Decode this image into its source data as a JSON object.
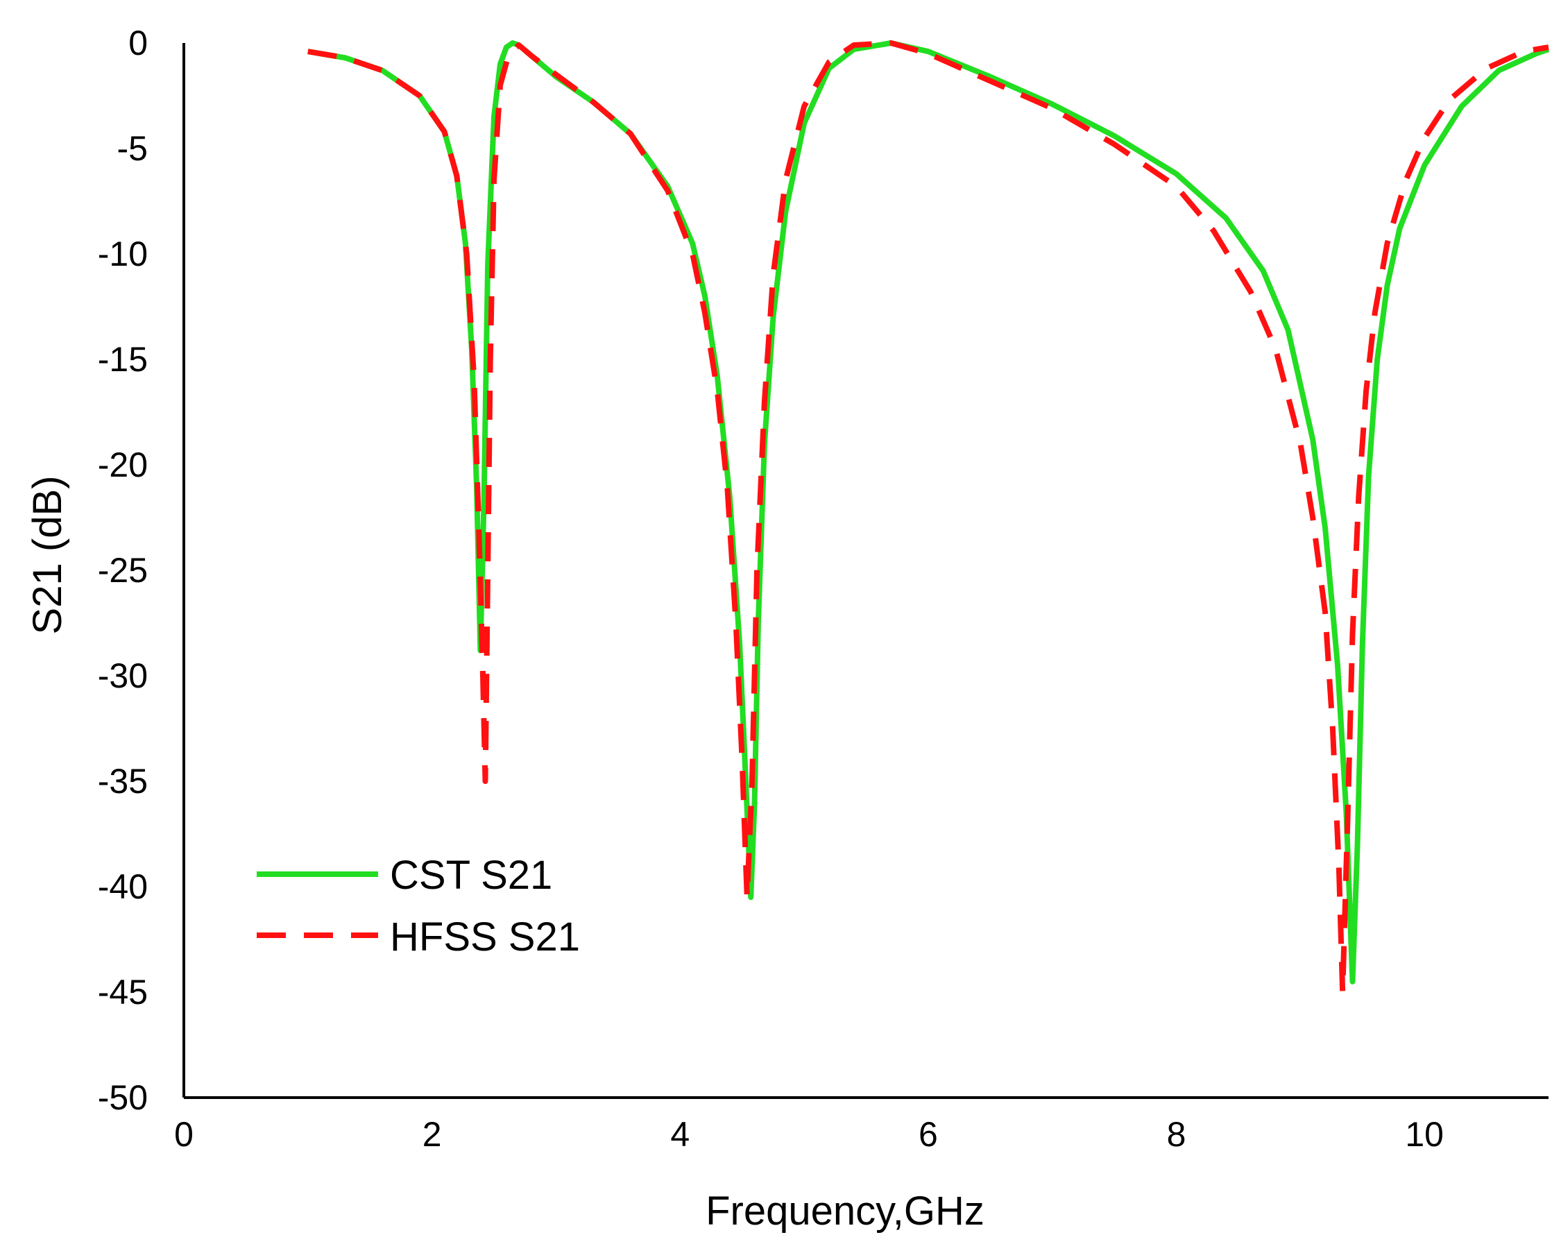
{
  "chart_data": {
    "type": "line",
    "title": "",
    "xlabel": "Frequency,GHz",
    "ylabel": "S21 (dB)",
    "xlim": [
      0,
      11
    ],
    "ylim": [
      -50,
      0
    ],
    "xticks": [
      0,
      2,
      4,
      6,
      8,
      10
    ],
    "yticks": [
      0,
      -5,
      -10,
      -15,
      -20,
      -25,
      -30,
      -35,
      -40,
      -45,
      -50
    ],
    "xtick_labels": [
      "0",
      "2",
      "4",
      "6",
      "8",
      "10"
    ],
    "ytick_labels": [
      "0",
      "-5",
      "-10",
      "-15",
      "-20",
      "-25",
      "-30",
      "-35",
      "-40",
      "-45",
      "-50"
    ],
    "grid": false,
    "legend_position": "bottom-left",
    "series": [
      {
        "name": "CST S21",
        "color": "#22dd22",
        "style": "solid",
        "x": [
          1.0,
          1.3,
          1.6,
          1.9,
          2.1,
          2.2,
          2.27,
          2.32,
          2.36,
          2.39,
          2.42,
          2.45,
          2.5,
          2.55,
          2.6,
          2.65,
          2.7,
          2.8,
          3.0,
          3.3,
          3.6,
          3.9,
          4.1,
          4.2,
          4.3,
          4.4,
          4.48,
          4.53,
          4.57,
          4.6,
          4.63,
          4.68,
          4.75,
          4.85,
          5.0,
          5.2,
          5.4,
          5.7,
          6.0,
          6.5,
          7.0,
          7.5,
          8.0,
          8.4,
          8.7,
          8.9,
          9.1,
          9.2,
          9.3,
          9.37,
          9.42,
          9.46,
          9.5,
          9.55,
          9.62,
          9.7,
          9.8,
          10.0,
          10.3,
          10.6,
          10.9,
          11.0
        ],
        "y": [
          -0.4,
          -0.7,
          -1.3,
          -2.5,
          -4.2,
          -6.3,
          -9.5,
          -14.5,
          -21.0,
          -28.8,
          -21.5,
          -10.5,
          -3.5,
          -1.0,
          -0.2,
          0.0,
          -0.1,
          -0.6,
          -1.6,
          -2.8,
          -4.3,
          -6.8,
          -9.5,
          -12.0,
          -15.8,
          -21.5,
          -28.5,
          -35.0,
          -40.5,
          -36.0,
          -27.5,
          -19.0,
          -13.0,
          -8.0,
          -3.8,
          -1.2,
          -0.3,
          0.0,
          -0.4,
          -1.6,
          -2.9,
          -4.4,
          -6.2,
          -8.3,
          -10.8,
          -13.6,
          -18.8,
          -23.0,
          -29.5,
          -36.5,
          -44.5,
          -38.0,
          -28.5,
          -20.5,
          -15.0,
          -11.5,
          -8.8,
          -5.8,
          -3.0,
          -1.3,
          -0.5,
          -0.3
        ]
      },
      {
        "name": "HFSS S21",
        "color": "#ff1111",
        "style": "dashed",
        "x": [
          1.0,
          1.3,
          1.6,
          1.9,
          2.1,
          2.2,
          2.28,
          2.34,
          2.38,
          2.41,
          2.43,
          2.45,
          2.47,
          2.5,
          2.55,
          2.62,
          2.7,
          2.8,
          3.0,
          3.3,
          3.6,
          3.9,
          4.1,
          4.2,
          4.3,
          4.38,
          4.45,
          4.5,
          4.54,
          4.58,
          4.62,
          4.68,
          4.75,
          4.85,
          5.0,
          5.2,
          5.4,
          5.7,
          6.0,
          6.5,
          7.0,
          7.5,
          8.0,
          8.3,
          8.6,
          8.8,
          9.0,
          9.1,
          9.2,
          9.26,
          9.31,
          9.34,
          9.38,
          9.42,
          9.47,
          9.53,
          9.6,
          9.7,
          9.85,
          10.0,
          10.2,
          10.5,
          10.8,
          11.0
        ],
        "y": [
          -0.4,
          -0.7,
          -1.3,
          -2.5,
          -4.2,
          -6.3,
          -10.0,
          -16.0,
          -23.5,
          -30.0,
          -35.0,
          -25.0,
          -15.0,
          -6.5,
          -2.0,
          -0.5,
          -0.1,
          -0.6,
          -1.5,
          -2.8,
          -4.3,
          -7.0,
          -10.0,
          -12.8,
          -16.5,
          -21.0,
          -27.5,
          -34.0,
          -40.5,
          -35.0,
          -25.0,
          -17.0,
          -11.0,
          -6.5,
          -3.0,
          -0.9,
          -0.1,
          0.0,
          -0.5,
          -1.8,
          -3.1,
          -4.8,
          -6.8,
          -8.9,
          -11.8,
          -14.5,
          -19.0,
          -22.5,
          -27.0,
          -32.5,
          -39.0,
          -45.0,
          -37.0,
          -28.0,
          -21.5,
          -16.5,
          -12.8,
          -9.5,
          -6.5,
          -4.5,
          -2.7,
          -1.2,
          -0.4,
          -0.2
        ]
      }
    ]
  }
}
